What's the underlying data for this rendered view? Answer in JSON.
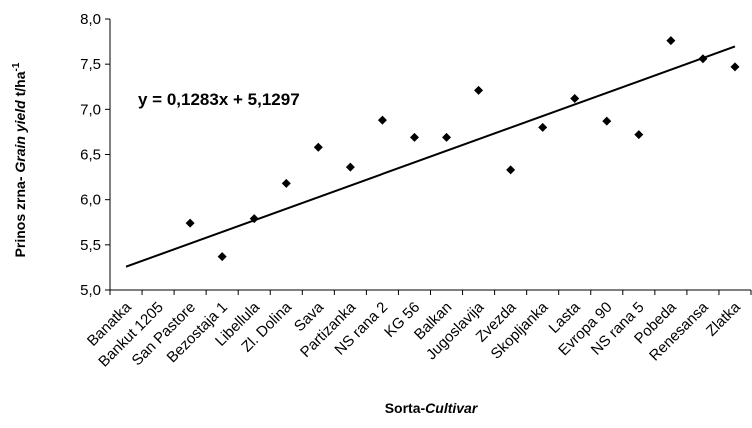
{
  "chart_data": {
    "type": "scatter",
    "categories": [
      "Banatka",
      "Bankut 1205",
      "San Pastore",
      "Bezostaja 1",
      "Libellula",
      "Zl. Dolina",
      "Sava",
      "Partizanka",
      "NS rana 2",
      "KG 56",
      "Balkan",
      "Jugoslavija",
      "Zvezda",
      "Skopljanka",
      "Lasta",
      "Evropa 90",
      "NS rana 5",
      "Pobeda",
      "Renesansa",
      "Zlatka"
    ],
    "values": [
      null,
      null,
      5.74,
      5.37,
      5.79,
      6.18,
      6.58,
      6.36,
      6.88,
      6.69,
      6.69,
      7.21,
      6.33,
      6.8,
      7.12,
      6.87,
      6.72,
      7.76,
      7.56,
      7.47
    ],
    "trendline": {
      "slope": 0.1283,
      "intercept": 5.1297,
      "label": "y = 0,1283x + 5,1297"
    },
    "ylim": [
      5.0,
      8.0
    ],
    "yticks": [
      "5,0",
      "5,5",
      "6,0",
      "6,5",
      "7,0",
      "7,5",
      "8,0"
    ],
    "ylabel": {
      "part1": "Prinos zrna- ",
      "part2": "Grain yield",
      "part3": "  t/ha",
      "sup": "-1"
    },
    "xlabel": {
      "part1": "Sorta-",
      "part2": "Cultivar"
    },
    "grid": false,
    "legend": "none"
  }
}
